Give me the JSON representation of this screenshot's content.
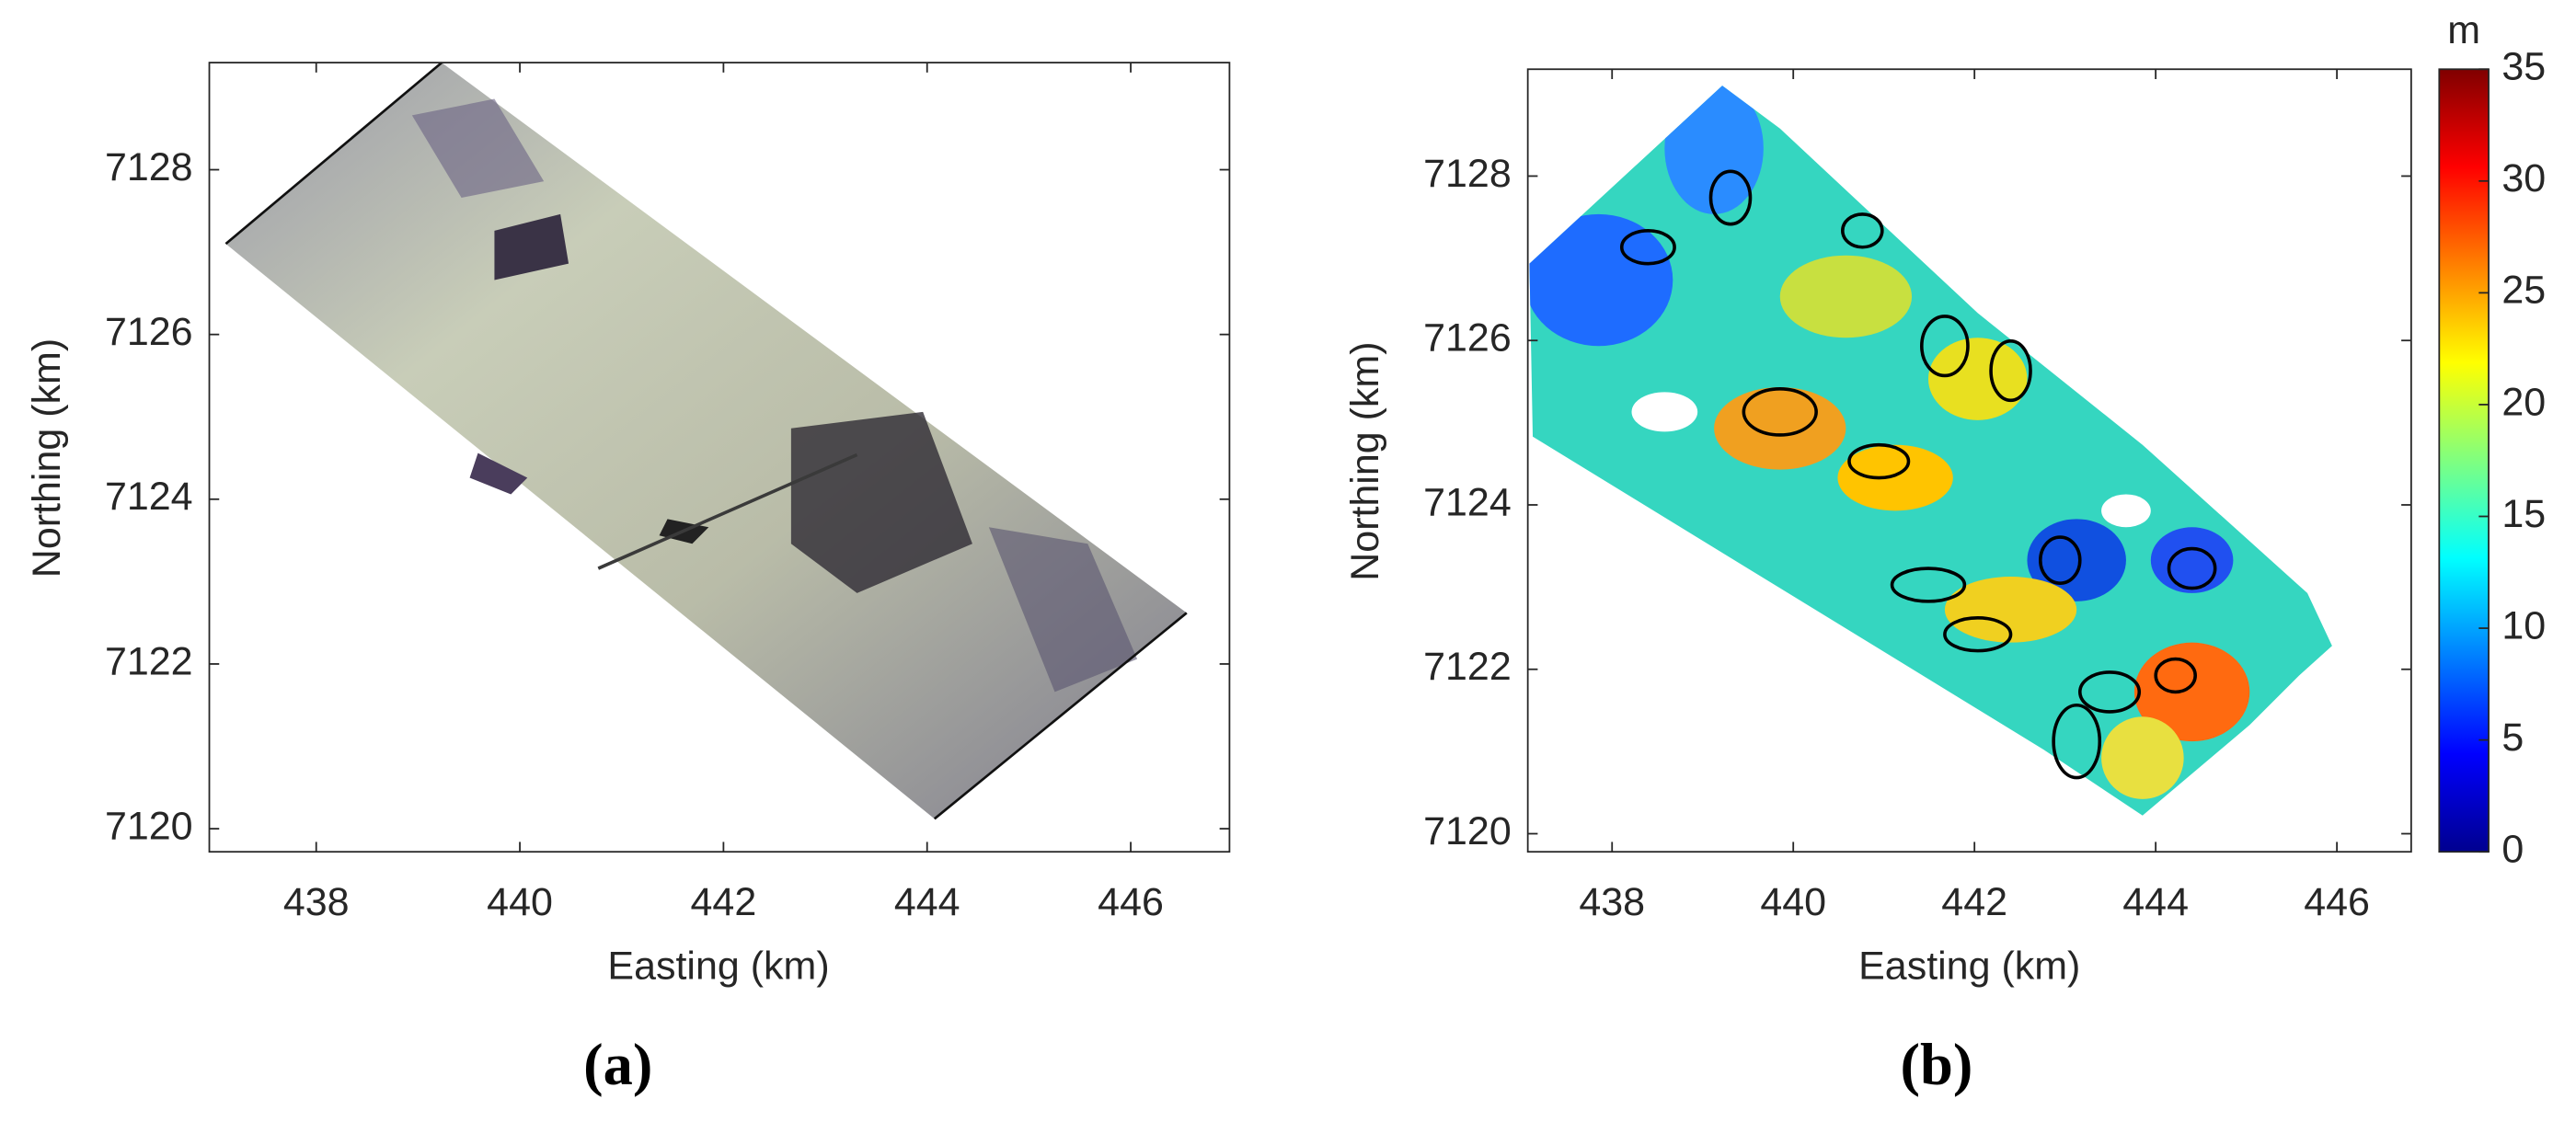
{
  "chart_data": [
    {
      "type": "image",
      "panel_label": "(a)",
      "x_label": "Easting (km)",
      "y_label": "Northing (km)",
      "xlim": [
        436.95,
        446.97
      ],
      "ylim": [
        7119.72,
        7129.3
      ],
      "xticks": [
        438,
        440,
        442,
        444,
        446
      ],
      "yticks": [
        7120,
        7122,
        7124,
        7126,
        7128
      ]
    },
    {
      "type": "heatmap",
      "panel_label": "(b)",
      "x_label": "Easting (km)",
      "y_label": "Northing (km)",
      "xlim": [
        437.07,
        446.82
      ],
      "ylim": [
        7119.78,
        7129.3
      ],
      "xticks": [
        438,
        440,
        442,
        444,
        446
      ],
      "yticks": [
        7120,
        7122,
        7124,
        7126,
        7128
      ],
      "colorbar_label": "m",
      "clim": [
        0,
        35
      ],
      "cticks": [
        0,
        5,
        10,
        15,
        20,
        25,
        30,
        35
      ]
    }
  ]
}
